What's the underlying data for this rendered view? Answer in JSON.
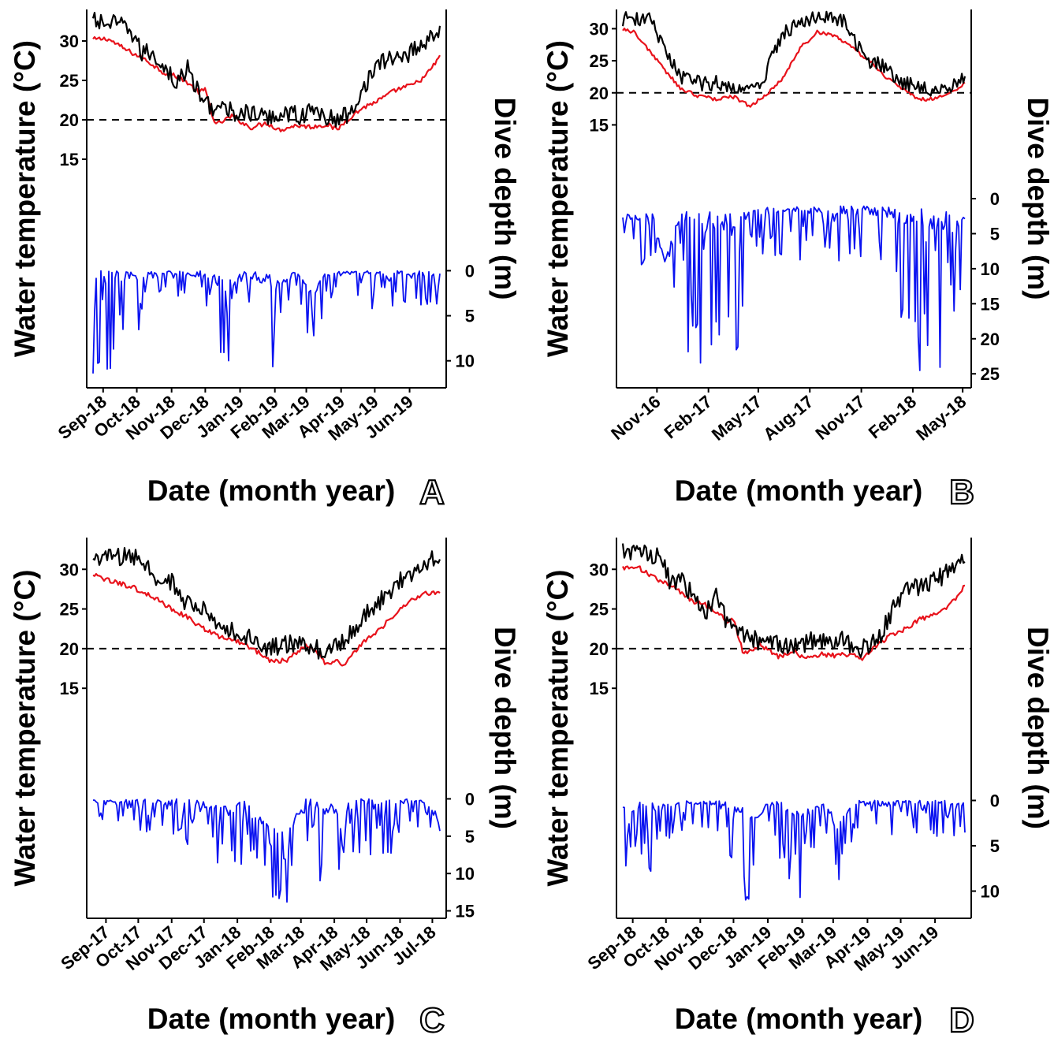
{
  "figure": {
    "colors": {
      "ocean": "#e8121b",
      "air": "#000000",
      "dive": "#0a12f0",
      "axis": "#000000"
    }
  },
  "chart_data": [
    {
      "panel": "A",
      "type": "line",
      "xlabel": "Date (month year)",
      "ylabel_left": "Water temperature (°C)",
      "ylabel_right": "Dive depth (m)",
      "x_ticks": [
        "Sep-18",
        "Oct-18",
        "Nov-18",
        "Dec-18",
        "Jan-19",
        "Feb-19",
        "Mar-19",
        "Apr-19",
        "May-19",
        "Jun-19"
      ],
      "xlim": [
        "2018-08-23",
        "2019-06-28"
      ],
      "temp_ticks": [
        15,
        20,
        25,
        30
      ],
      "temp_range": [
        -14,
        34
      ],
      "depth_ticks": [
        0,
        5,
        10
      ],
      "depth_range": [
        -29,
        13
      ],
      "threshold": 20,
      "series": [
        {
          "key": "ocean",
          "dates": [
            "2018-08-23",
            "2018-09-05",
            "2018-09-20",
            "2018-10-10",
            "2018-10-25",
            "2018-11-10",
            "2018-11-25",
            "2018-12-01",
            "2018-12-10",
            "2018-12-25",
            "2019-01-10",
            "2019-01-25",
            "2019-02-05",
            "2019-02-20",
            "2019-03-05",
            "2019-03-20",
            "2019-03-28",
            "2019-04-08",
            "2019-04-20",
            "2019-05-05",
            "2019-05-20",
            "2019-06-05",
            "2019-06-15",
            "2019-06-28"
          ],
          "temps": [
            30.2,
            30.3,
            29.0,
            27.5,
            26.0,
            25.3,
            23.5,
            23.8,
            19.3,
            20.5,
            19.0,
            19.6,
            18.7,
            19.3,
            19.1,
            19.4,
            18.7,
            20.2,
            21.5,
            22.5,
            23.8,
            24.5,
            25.5,
            28.0
          ]
        },
        {
          "key": "air",
          "dates": [
            "2018-08-23",
            "2018-09-15",
            "2018-09-25",
            "2018-10-05",
            "2018-10-15",
            "2018-10-30",
            "2018-11-05",
            "2018-11-15",
            "2018-11-28",
            "2018-12-10",
            "2018-12-25",
            "2019-01-10",
            "2019-01-25",
            "2019-02-10",
            "2019-02-25",
            "2019-03-10",
            "2019-03-20",
            "2019-03-30",
            "2019-04-10",
            "2019-04-20",
            "2019-05-01",
            "2019-05-10",
            "2019-05-20",
            "2019-06-01",
            "2019-06-15",
            "2019-06-28"
          ],
          "temps": [
            32.5,
            32.0,
            31.5,
            28.5,
            28.5,
            26.0,
            24.5,
            26.5,
            22.5,
            21.5,
            21.0,
            20.8,
            20.2,
            21.0,
            20.5,
            21.3,
            20.2,
            20.0,
            21.0,
            24.0,
            26.5,
            27.5,
            28.0,
            28.5,
            30.0,
            31.5
          ]
        },
        {
          "key": "dive",
          "dates": [
            "2018-08-23",
            "2018-09-05",
            "2018-09-20",
            "2018-10-05",
            "2018-10-20",
            "2018-11-05",
            "2018-11-20",
            "2018-12-05",
            "2018-12-20",
            "2019-01-05",
            "2019-01-20",
            "2019-02-05",
            "2019-02-20",
            "2019-03-05",
            "2019-03-20",
            "2019-04-05",
            "2019-04-20",
            "2019-05-05",
            "2019-05-20",
            "2019-06-05",
            "2019-06-20",
            "2019-06-28"
          ],
          "depth_min": [
            0,
            0,
            0,
            0,
            0,
            0,
            0,
            0,
            1,
            0,
            0,
            1,
            0,
            2,
            0,
            0,
            0,
            0,
            0,
            0,
            0,
            0
          ],
          "depth_max": [
            12,
            11,
            10,
            6,
            3,
            3,
            4,
            11,
            11,
            3,
            11,
            11,
            3,
            10,
            4,
            4,
            5,
            4,
            4,
            4,
            4,
            4
          ]
        }
      ]
    },
    {
      "panel": "B",
      "type": "line",
      "xlabel": "Date (month year)",
      "ylabel_left": "Water temperature (°C)",
      "ylabel_right": "Dive depth (m)",
      "x_ticks": [
        "Nov-16",
        "Feb-17",
        "May-17",
        "Aug-17",
        "Nov-17",
        "Feb-18",
        "May-18"
      ],
      "xlim": [
        "2016-09-01",
        "2018-05-05"
      ],
      "temp_ticks": [
        15,
        20,
        25,
        30
      ],
      "temp_range": [
        -26,
        33
      ],
      "depth_ticks": [
        0,
        5,
        10,
        15,
        20,
        25
      ],
      "depth_range": [
        -27,
        27
      ],
      "threshold": 20,
      "series": [
        {
          "key": "ocean",
          "dates": [
            "2016-09-01",
            "2016-09-20",
            "2016-10-15",
            "2016-11-15",
            "2016-12-15",
            "2017-01-15",
            "2017-02-15",
            "2017-03-15",
            "2017-04-15",
            "2017-05-15",
            "2017-06-15",
            "2017-07-15",
            "2017-08-15",
            "2017-09-15",
            "2017-10-15",
            "2017-11-15",
            "2017-12-15",
            "2018-01-15",
            "2018-02-10",
            "2018-03-01",
            "2018-04-01",
            "2018-05-05"
          ],
          "temps": [
            30.0,
            29.5,
            27.0,
            23.5,
            20.5,
            19.5,
            19.0,
            19.5,
            18.0,
            19.5,
            22.5,
            27.0,
            29.5,
            29.0,
            27.0,
            25.0,
            22.5,
            20.5,
            19.0,
            19.0,
            19.5,
            21.5
          ]
        },
        {
          "key": "air",
          "dates": [
            "2016-09-01",
            "2016-10-01",
            "2016-10-20",
            "2016-11-15",
            "2016-12-15",
            "2017-01-15",
            "2017-02-15",
            "2017-03-15",
            "2017-04-15",
            "2017-05-10",
            "2017-05-25",
            "2017-06-15",
            "2017-07-15",
            "2017-08-15",
            "2017-09-01",
            "2017-09-30",
            "2017-10-15",
            "2017-11-15",
            "2017-12-15",
            "2018-01-15",
            "2018-02-15",
            "2018-03-15",
            "2018-04-15",
            "2018-05-05"
          ],
          "temps": [
            31.5,
            31.5,
            31.5,
            26.5,
            22.5,
            21.5,
            21.5,
            21.0,
            20.5,
            21.5,
            25.5,
            29.5,
            31.0,
            32.0,
            31.5,
            31.5,
            28.5,
            25.0,
            24.0,
            21.5,
            21.0,
            20.5,
            21.0,
            22.5
          ]
        },
        {
          "key": "dive",
          "dates": [
            "2016-09-01",
            "2016-10-01",
            "2016-10-25",
            "2016-11-15",
            "2016-12-15",
            "2017-01-15",
            "2017-02-15",
            "2017-03-15",
            "2017-04-15",
            "2017-05-15",
            "2017-06-15",
            "2017-07-15",
            "2017-08-15",
            "2017-09-15",
            "2017-10-15",
            "2017-11-15",
            "2017-12-15",
            "2018-01-15",
            "2018-02-15",
            "2018-03-15",
            "2018-04-15",
            "2018-05-05"
          ],
          "depth_min": [
            2,
            2,
            2,
            9,
            1,
            2,
            1,
            2,
            1,
            1,
            1,
            1,
            1,
            1,
            1,
            1,
            1,
            1,
            1,
            1,
            2,
            2
          ],
          "depth_max": [
            9,
            10,
            10,
            9,
            20,
            25,
            25,
            26,
            12,
            10,
            8,
            9,
            10,
            10,
            9,
            10,
            12,
            21,
            25,
            26,
            20,
            11
          ]
        }
      ]
    },
    {
      "panel": "C",
      "type": "line",
      "xlabel": "Date (month year)",
      "ylabel_left": "Water temperature (°C)",
      "ylabel_right": "Dive depth (m)",
      "x_ticks": [
        "Sep-17",
        "Oct-17",
        "Nov-17",
        "Dec-17",
        "Jan-18",
        "Feb-18",
        "Mar-18",
        "Apr-18",
        "May-18",
        "Jun-18",
        "Jul-18"
      ],
      "xlim": [
        "2017-08-20",
        "2018-07-08"
      ],
      "temp_ticks": [
        15,
        20,
        25,
        30
      ],
      "temp_range": [
        -14,
        34
      ],
      "depth_ticks": [
        0,
        5,
        10,
        15
      ],
      "depth_range": [
        -35,
        16
      ],
      "threshold": 20,
      "series": [
        {
          "key": "ocean",
          "dates": [
            "2017-08-20",
            "2017-09-05",
            "2017-09-25",
            "2017-10-15",
            "2017-11-01",
            "2017-11-15",
            "2017-12-01",
            "2017-12-15",
            "2018-01-01",
            "2018-01-15",
            "2018-02-01",
            "2018-02-15",
            "2018-03-01",
            "2018-03-10",
            "2018-03-25",
            "2018-04-01",
            "2018-04-10",
            "2018-04-25",
            "2018-05-10",
            "2018-05-25",
            "2018-06-10",
            "2018-06-25",
            "2018-07-08"
          ],
          "temps": [
            29.3,
            28.5,
            27.8,
            26.5,
            25.0,
            24.0,
            22.5,
            21.5,
            21.0,
            20.0,
            18.5,
            18.5,
            20.0,
            20.5,
            18.0,
            18.5,
            18.0,
            20.5,
            22.0,
            24.0,
            26.0,
            27.0,
            27.0
          ]
        },
        {
          "key": "air",
          "dates": [
            "2017-08-20",
            "2017-09-10",
            "2017-10-01",
            "2017-10-20",
            "2017-11-01",
            "2017-11-15",
            "2017-12-01",
            "2017-12-15",
            "2018-01-01",
            "2018-01-15",
            "2018-02-01",
            "2018-02-15",
            "2018-03-01",
            "2018-03-15",
            "2018-03-25",
            "2018-04-10",
            "2018-04-25",
            "2018-05-10",
            "2018-05-25",
            "2018-06-10",
            "2018-06-25",
            "2018-07-08"
          ],
          "temps": [
            31.5,
            31.5,
            31.5,
            28.5,
            28.5,
            25.5,
            25.0,
            22.5,
            22.0,
            21.0,
            20.0,
            20.5,
            20.5,
            20.0,
            19.5,
            21.0,
            23.5,
            25.5,
            27.5,
            29.5,
            31.0,
            31.5
          ]
        },
        {
          "key": "dive",
          "dates": [
            "2017-08-20",
            "2017-09-10",
            "2017-10-01",
            "2017-10-20",
            "2017-11-10",
            "2017-12-01",
            "2017-12-20",
            "2018-01-05",
            "2018-01-20",
            "2018-02-05",
            "2018-02-20",
            "2018-03-05",
            "2018-03-20",
            "2018-04-05",
            "2018-04-20",
            "2018-05-05",
            "2018-05-20",
            "2018-06-05",
            "2018-06-20",
            "2018-07-08"
          ],
          "depth_min": [
            0,
            0,
            0,
            0,
            0,
            0,
            1,
            0,
            2,
            3,
            3,
            0,
            0,
            1,
            0,
            0,
            0,
            0,
            0,
            2
          ],
          "depth_max": [
            3,
            3,
            4,
            7,
            6,
            8,
            10,
            12,
            10,
            14,
            15,
            7,
            13,
            13,
            10,
            9,
            8,
            5,
            4,
            5
          ]
        }
      ]
    },
    {
      "panel": "D",
      "type": "line",
      "xlabel": "Date (month year)",
      "ylabel_left": "Water temperature (°C)",
      "ylabel_right": "Dive depth (m)",
      "x_ticks": [
        "Sep-18",
        "Oct-18",
        "Nov-18",
        "Dec-18",
        "Jan-19",
        "Feb-19",
        "Mar-19",
        "Apr-19",
        "May-19",
        "Jun-19"
      ],
      "xlim": [
        "2018-08-23",
        "2019-06-28"
      ],
      "temp_ticks": [
        15,
        20,
        25,
        30
      ],
      "temp_range": [
        -14,
        34
      ],
      "depth_ticks": [
        0,
        5,
        10
      ],
      "depth_range": [
        -29,
        13
      ],
      "threshold": 20,
      "series": [
        {
          "key": "ocean",
          "dates": [
            "2018-08-23",
            "2018-09-05",
            "2018-09-20",
            "2018-10-10",
            "2018-10-25",
            "2018-11-10",
            "2018-11-25",
            "2018-12-01",
            "2018-12-10",
            "2018-12-25",
            "2019-01-10",
            "2019-01-25",
            "2019-02-05",
            "2019-02-20",
            "2019-03-05",
            "2019-03-20",
            "2019-03-28",
            "2019-04-08",
            "2019-04-20",
            "2019-05-05",
            "2019-05-20",
            "2019-06-05",
            "2019-06-15",
            "2019-06-28"
          ],
          "temps": [
            30.2,
            30.3,
            29.0,
            27.5,
            26.0,
            25.3,
            23.5,
            23.8,
            19.3,
            20.5,
            19.0,
            19.6,
            18.7,
            19.3,
            19.1,
            19.4,
            18.7,
            20.2,
            21.5,
            22.5,
            23.8,
            24.5,
            25.5,
            28.0
          ]
        },
        {
          "key": "air",
          "dates": [
            "2018-08-23",
            "2018-09-15",
            "2018-09-25",
            "2018-10-05",
            "2018-10-15",
            "2018-10-30",
            "2018-11-05",
            "2018-11-15",
            "2018-11-28",
            "2018-12-10",
            "2018-12-25",
            "2019-01-10",
            "2019-01-25",
            "2019-02-10",
            "2019-02-25",
            "2019-03-10",
            "2019-03-20",
            "2019-03-30",
            "2019-04-10",
            "2019-04-20",
            "2019-05-01",
            "2019-05-10",
            "2019-05-20",
            "2019-06-01",
            "2019-06-15",
            "2019-06-28"
          ],
          "temps": [
            32.5,
            32.0,
            31.5,
            28.5,
            28.5,
            26.0,
            24.5,
            26.5,
            22.5,
            21.5,
            21.0,
            20.8,
            20.2,
            21.0,
            20.5,
            21.3,
            20.2,
            20.0,
            21.0,
            24.0,
            26.5,
            27.5,
            28.0,
            28.5,
            30.0,
            31.5
          ]
        },
        {
          "key": "dive",
          "dates": [
            "2018-08-23",
            "2018-09-05",
            "2018-09-20",
            "2018-10-05",
            "2018-10-20",
            "2018-11-05",
            "2018-11-20",
            "2018-12-05",
            "2018-12-20",
            "2019-01-05",
            "2019-01-20",
            "2019-02-05",
            "2019-02-20",
            "2019-03-05",
            "2019-03-20",
            "2019-04-05",
            "2019-04-20",
            "2019-05-05",
            "2019-05-20",
            "2019-06-05",
            "2019-06-20",
            "2019-06-28"
          ],
          "depth_min": [
            0,
            0,
            0,
            0,
            0,
            0,
            0,
            0,
            1,
            0,
            0,
            1,
            0,
            2,
            0,
            0,
            0,
            0,
            0,
            0,
            0,
            0
          ],
          "depth_max": [
            12,
            11,
            10,
            6,
            3,
            3,
            4,
            11,
            11,
            3,
            11,
            11,
            3,
            10,
            4,
            4,
            5,
            4,
            4,
            4,
            4,
            4
          ]
        }
      ]
    }
  ]
}
